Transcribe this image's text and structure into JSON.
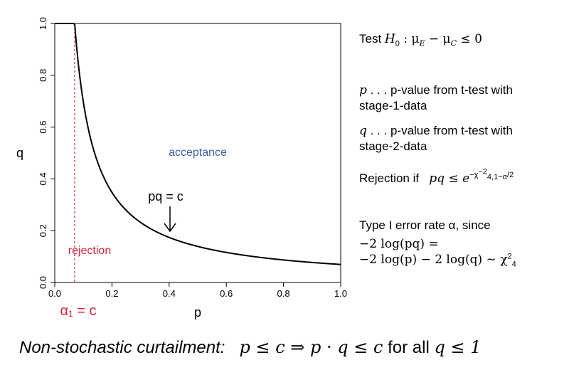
{
  "chart_data": {
    "type": "line",
    "xlabel": "p",
    "ylabel": "q",
    "xlim": [
      0,
      1
    ],
    "ylim": [
      0,
      1
    ],
    "xticks": [
      "0.0",
      "0.2",
      "0.4",
      "0.6",
      "0.8",
      "1.0"
    ],
    "yticks": [
      "0.0",
      "0.2",
      "0.4",
      "0.6",
      "0.8",
      "1.0"
    ],
    "c": 0.0696,
    "series": [
      {
        "x": [
          0.0,
          0.0696,
          0.08,
          0.1,
          0.12,
          0.15,
          0.2,
          0.25,
          0.3,
          0.4,
          0.5,
          0.6,
          0.7,
          0.8,
          0.9,
          1.0
        ],
        "y": [
          1.0,
          1.0,
          0.87,
          0.696,
          0.58,
          0.464,
          0.348,
          0.278,
          0.232,
          0.174,
          0.139,
          0.116,
          0.099,
          0.087,
          0.077,
          0.0696
        ]
      }
    ],
    "vline": {
      "x": 0.0696,
      "color": "#d7263d"
    },
    "annotations": {
      "acceptance": {
        "text": "acceptance",
        "color": "#3a5fa6"
      },
      "rejection": {
        "text": "rejection",
        "color": "#d7263d"
      },
      "curve": {
        "text": "pq = c"
      }
    },
    "alpha_label": {
      "text": "α₁ = c",
      "color": "#d7263d"
    }
  },
  "side": {
    "test_prefix": "Test ",
    "test_h0": "H",
    "test_h0_sub": "0",
    "test_rest": " : μ",
    "test_e": "E",
    "test_minus": " − μ",
    "test_c": "C",
    "test_end": " ≤ 0",
    "p_sym": "p",
    "p_desc_1": " . . . p-value from t-test with",
    "p_desc_2": "stage-1-data",
    "q_sym": "q",
    "q_desc_1": " . . . p-value from t-test with",
    "q_desc_2": "stage-2-data",
    "rej_text": "Rejection if",
    "rej_math": "pq ≤ e",
    "rej_exp": "−χ",
    "rej_exp_sub": "4,1−α",
    "rej_exp_sup": "−2",
    "rej_exp_tail": "/2",
    "type1_text": "Type I error rate α, since",
    "eq1": "−2 log(pq) =",
    "eq2": "−2 log(p) − 2 log(q) ∼ χ",
    "eq2_sub": "4",
    "eq2_sup": "2"
  },
  "footer": {
    "label": "Non-stochastic curtailment:",
    "math": "p ≤ c ⇒ p · q ≤ c",
    "tail": " for all ",
    "math2": "q ≤ 1"
  }
}
